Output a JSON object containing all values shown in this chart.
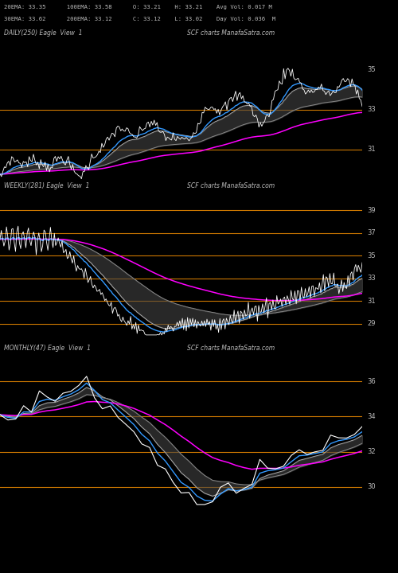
{
  "background_color": "#000000",
  "text_color": "#bbbbbb",
  "header_line1": "20EMA: 33.35      100EMA: 33.58      O: 33.21    H: 33.21    Avg Vol: 0.017 M",
  "header_line2": "30EMA: 33.62      200EMA: 33.12      C: 33.12    L: 33.02    Day Vol: 0.036  M",
  "panel1_label": "DAILY(250) Eagle  View  1",
  "panel1_watermark": "SCF charts ManafaSatra.com",
  "panel1_ylim": [
    29.5,
    36.5
  ],
  "panel1_orange_lines": [
    33.0,
    31.0
  ],
  "panel1_yticks": [
    35,
    33,
    31
  ],
  "panel2_label": "WEEKLY(281) Eagle  View  1",
  "panel2_watermark": "SCF charts ManafaSatra.com",
  "panel2_ylim": [
    27.5,
    40.5
  ],
  "panel2_orange_lines": [
    39.0,
    37.0,
    35.0,
    33.0,
    31.0,
    29.0
  ],
  "panel2_yticks": [
    39,
    37,
    35,
    33,
    31,
    29
  ],
  "panel3_label": "MONTHLY(47) Eagle  View  1",
  "panel3_watermark": "SCF charts ManafaSatra.com",
  "panel3_ylim": [
    28.5,
    37.5
  ],
  "panel3_orange_lines": [
    36.0,
    34.0,
    32.0,
    30.0
  ],
  "panel3_yticks": [
    36,
    34,
    32,
    30
  ],
  "col_price": "#ffffff",
  "col_ema_fast": "#3399ff",
  "col_ema_mid1": "#888888",
  "col_ema_mid2": "#666666",
  "col_ema_slow": "#ff00ff",
  "col_orange": "#cc7700",
  "col_band": "#444444",
  "figsize": [
    5.0,
    7.2
  ],
  "dpi": 100
}
